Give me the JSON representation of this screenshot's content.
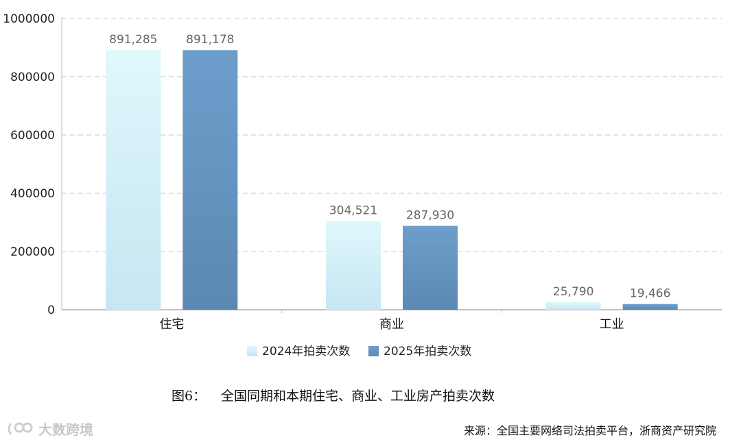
{
  "chart_data": {
    "type": "bar",
    "categories": [
      "住宅",
      "商业",
      "工业"
    ],
    "series": [
      {
        "name": "2024年拍卖次数",
        "values": [
          891285,
          304521,
          25790
        ],
        "labels": [
          "891,285",
          "304,521",
          "25,790"
        ],
        "color_top": "#dff8fc",
        "color_bottom": "#c6e6f2"
      },
      {
        "name": "2025年拍卖次数",
        "values": [
          891178,
          287930,
          19466
        ],
        "labels": [
          "891,178",
          "287,930",
          "19,466"
        ],
        "color_top": "#6d9ecb",
        "color_bottom": "#5b89b3"
      }
    ],
    "yticks": [
      "0",
      "200000",
      "400000",
      "600000",
      "800000",
      "1000000"
    ],
    "ylim": [
      0,
      1000000
    ],
    "grid": true,
    "legend_position": "bottom-center"
  },
  "caption": {
    "number": "图6：",
    "text": "全国同期和本期住宅、商业、工业房产拍卖次数"
  },
  "source": "来源：全国主要网络司法拍卖平台，浙商资产研究院",
  "watermark": {
    "text": "大数跨境"
  }
}
